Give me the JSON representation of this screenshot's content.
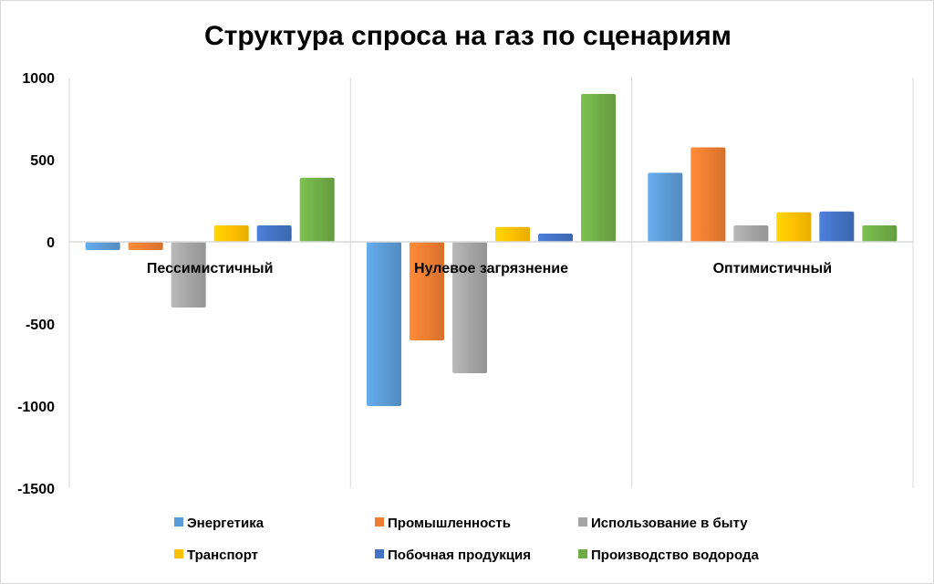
{
  "chart_data": {
    "type": "bar",
    "title": "Структура спроса на газ по сценариям",
    "xlabel": "",
    "ylabel": "",
    "categories": [
      "Пессимистичный",
      "Нулевое загрязнение",
      "Оптимистичный"
    ],
    "ylim": [
      -1500,
      1000
    ],
    "yticks": [
      1000,
      500,
      0,
      -500,
      -1000,
      -1500
    ],
    "ytick_labels": [
      "1000",
      "500",
      "0",
      "-500",
      "-1000",
      "-1500"
    ],
    "grid": "vertical category separators",
    "legend_position": "bottom",
    "series": [
      {
        "name": "Энергетика",
        "color": "#5b9bd5",
        "values": [
          -50,
          -1000,
          420
        ]
      },
      {
        "name": "Промышленность",
        "color": "#ed7d31",
        "values": [
          -50,
          -600,
          575
        ]
      },
      {
        "name": "Использование в быту",
        "color": "#a5a5a5",
        "values": [
          -400,
          -800,
          100
        ]
      },
      {
        "name": "Транспорт",
        "color": "#ffc000",
        "values": [
          100,
          90,
          180
        ]
      },
      {
        "name": "Побочная продукция",
        "color": "#4472c4",
        "values": [
          100,
          50,
          185
        ]
      },
      {
        "name": "Производство водорода",
        "color": "#70ad47",
        "values": [
          390,
          900,
          100
        ]
      }
    ]
  }
}
